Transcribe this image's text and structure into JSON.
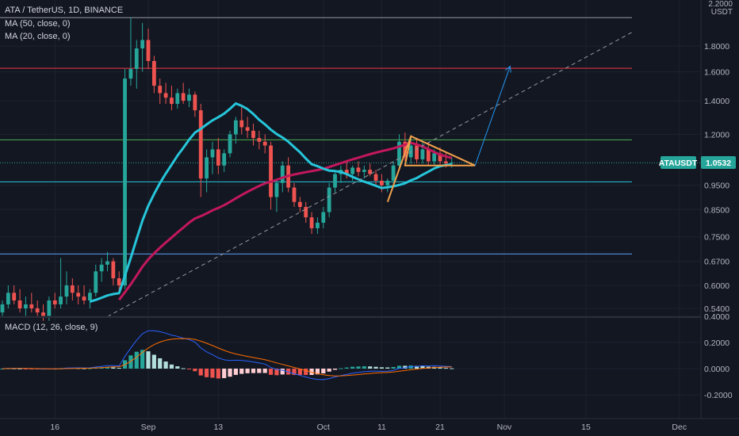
{
  "header": {
    "symbol_line": "ATA / TetherUS, 1D, BINANCE",
    "ma50_label": "MA (50, close, 0)",
    "ma20_label": "MA (20, close, 0)",
    "macd_label": "MACD (12, 26, close, 9)",
    "currency_top": "2.2000",
    "currency_unit": "USDT"
  },
  "price_tag": {
    "symbol": "ATAUSDT",
    "value": "1.0532"
  },
  "colors": {
    "up": "#26a69a",
    "down": "#ef5350",
    "ma20": "#26c6da",
    "ma50": "#c2185b",
    "macd_line": "#2962ff",
    "signal_line": "#ff6d00",
    "pattern": "#f0a04b",
    "hist_up_strong": "#26a69a",
    "hist_up_weak": "#b2dfdb",
    "hist_down_strong": "#ef5350",
    "hist_down_weak": "#ffcdd2",
    "arrow": "#2196f3"
  },
  "chart_data": [
    {
      "type": "candlestick",
      "title": "ATA / TetherUS, 1D, BINANCE",
      "scale": "log",
      "ylim": [
        0.5,
        2.2
      ],
      "y_ticks": [
        "1.8000",
        "1.6000",
        "1.4000",
        "1.2000",
        "0.9500",
        "0.8500",
        "0.7500",
        "0.6700",
        "0.6000",
        "0.5400"
      ],
      "x_ticks": [
        "16",
        "Sep",
        "13",
        "Oct",
        "11",
        "21",
        "Nov",
        "15",
        "Dec"
      ],
      "start_date": "2021-08-07",
      "candles": [
        [
          0.53,
          0.56,
          0.52,
          0.55
        ],
        [
          0.55,
          0.6,
          0.54,
          0.58
        ],
        [
          0.58,
          0.6,
          0.55,
          0.56
        ],
        [
          0.56,
          0.59,
          0.53,
          0.54
        ],
        [
          0.54,
          0.57,
          0.52,
          0.55
        ],
        [
          0.55,
          0.58,
          0.53,
          0.54
        ],
        [
          0.54,
          0.56,
          0.52,
          0.53
        ],
        [
          0.53,
          0.55,
          0.51,
          0.52
        ],
        [
          0.52,
          0.57,
          0.51,
          0.56
        ],
        [
          0.56,
          0.58,
          0.54,
          0.55
        ],
        [
          0.55,
          0.68,
          0.54,
          0.57
        ],
        [
          0.57,
          0.64,
          0.55,
          0.6
        ],
        [
          0.6,
          0.62,
          0.56,
          0.58
        ],
        [
          0.58,
          0.6,
          0.55,
          0.57
        ],
        [
          0.57,
          0.6,
          0.55,
          0.56
        ],
        [
          0.56,
          0.59,
          0.54,
          0.58
        ],
        [
          0.58,
          0.66,
          0.57,
          0.64
        ],
        [
          0.64,
          0.68,
          0.61,
          0.66
        ],
        [
          0.66,
          0.7,
          0.64,
          0.67
        ],
        [
          0.67,
          0.68,
          0.6,
          0.62
        ],
        [
          0.62,
          0.64,
          0.58,
          0.6
        ],
        [
          0.6,
          1.62,
          0.59,
          1.55
        ],
        [
          1.55,
          2.05,
          1.5,
          1.62
        ],
        [
          1.62,
          1.85,
          1.48,
          1.78
        ],
        [
          1.78,
          2.0,
          1.6,
          1.85
        ],
        [
          1.85,
          1.95,
          1.62,
          1.68
        ],
        [
          1.68,
          1.72,
          1.45,
          1.5
        ],
        [
          1.5,
          1.55,
          1.38,
          1.45
        ],
        [
          1.45,
          1.52,
          1.38,
          1.42
        ],
        [
          1.42,
          1.5,
          1.34,
          1.38
        ],
        [
          1.38,
          1.48,
          1.35,
          1.45
        ],
        [
          1.45,
          1.52,
          1.38,
          1.4
        ],
        [
          1.4,
          1.48,
          1.36,
          1.44
        ],
        [
          1.44,
          1.46,
          1.3,
          1.34
        ],
        [
          1.34,
          1.38,
          0.9,
          0.98
        ],
        [
          0.98,
          1.12,
          0.92,
          1.08
        ],
        [
          1.08,
          1.16,
          1.0,
          1.12
        ],
        [
          1.12,
          1.18,
          1.0,
          1.04
        ],
        [
          1.04,
          1.12,
          1.01,
          1.1
        ],
        [
          1.1,
          1.22,
          1.08,
          1.2
        ],
        [
          1.2,
          1.3,
          1.15,
          1.28
        ],
        [
          1.28,
          1.36,
          1.2,
          1.24
        ],
        [
          1.24,
          1.3,
          1.18,
          1.22
        ],
        [
          1.22,
          1.26,
          1.14,
          1.18
        ],
        [
          1.18,
          1.22,
          1.12,
          1.16
        ],
        [
          1.16,
          1.2,
          1.1,
          1.14
        ],
        [
          1.14,
          1.16,
          0.85,
          0.9
        ],
        [
          0.9,
          0.98,
          0.84,
          0.96
        ],
        [
          0.96,
          1.06,
          0.92,
          1.04
        ],
        [
          1.04,
          1.08,
          0.92,
          0.94
        ],
        [
          0.94,
          0.96,
          0.86,
          0.88
        ],
        [
          0.88,
          0.9,
          0.84,
          0.86
        ],
        [
          0.86,
          0.88,
          0.8,
          0.82
        ],
        [
          0.82,
          0.84,
          0.76,
          0.78
        ],
        [
          0.78,
          0.82,
          0.76,
          0.8
        ],
        [
          0.8,
          0.86,
          0.78,
          0.84
        ],
        [
          0.84,
          0.96,
          0.82,
          0.94
        ],
        [
          0.94,
          1.02,
          0.92,
          1.0
        ],
        [
          1.0,
          1.04,
          0.96,
          1.02
        ],
        [
          1.02,
          1.06,
          0.98,
          1.0
        ],
        [
          1.0,
          1.04,
          0.97,
          1.03
        ],
        [
          1.03,
          1.06,
          0.99,
          1.01
        ],
        [
          1.01,
          1.04,
          0.98,
          1.02
        ],
        [
          1.02,
          1.05,
          0.99,
          1.0
        ],
        [
          1.0,
          1.02,
          0.95,
          0.97
        ],
        [
          0.97,
          1.0,
          0.92,
          0.95
        ],
        [
          0.95,
          0.98,
          0.92,
          0.97
        ],
        [
          0.97,
          1.06,
          0.95,
          1.04
        ],
        [
          1.04,
          1.2,
          1.02,
          1.16
        ],
        [
          1.16,
          1.21,
          1.06,
          1.08
        ],
        [
          1.08,
          1.18,
          1.05,
          1.14
        ],
        [
          1.14,
          1.18,
          1.05,
          1.07
        ],
        [
          1.07,
          1.16,
          1.05,
          1.12
        ],
        [
          1.12,
          1.16,
          1.04,
          1.06
        ],
        [
          1.06,
          1.12,
          1.04,
          1.1
        ],
        [
          1.1,
          1.13,
          1.04,
          1.06
        ],
        [
          1.06,
          1.1,
          1.03,
          1.05
        ],
        [
          1.05,
          1.08,
          1.03,
          1.0532
        ]
      ]
    },
    {
      "type": "line",
      "title": "MACD (12, 26, close, 9)",
      "ylim": [
        -0.28,
        0.42
      ],
      "y_ticks": [
        "0.4000",
        "0.2000",
        "0.0000",
        "-0.2000"
      ]
    }
  ]
}
